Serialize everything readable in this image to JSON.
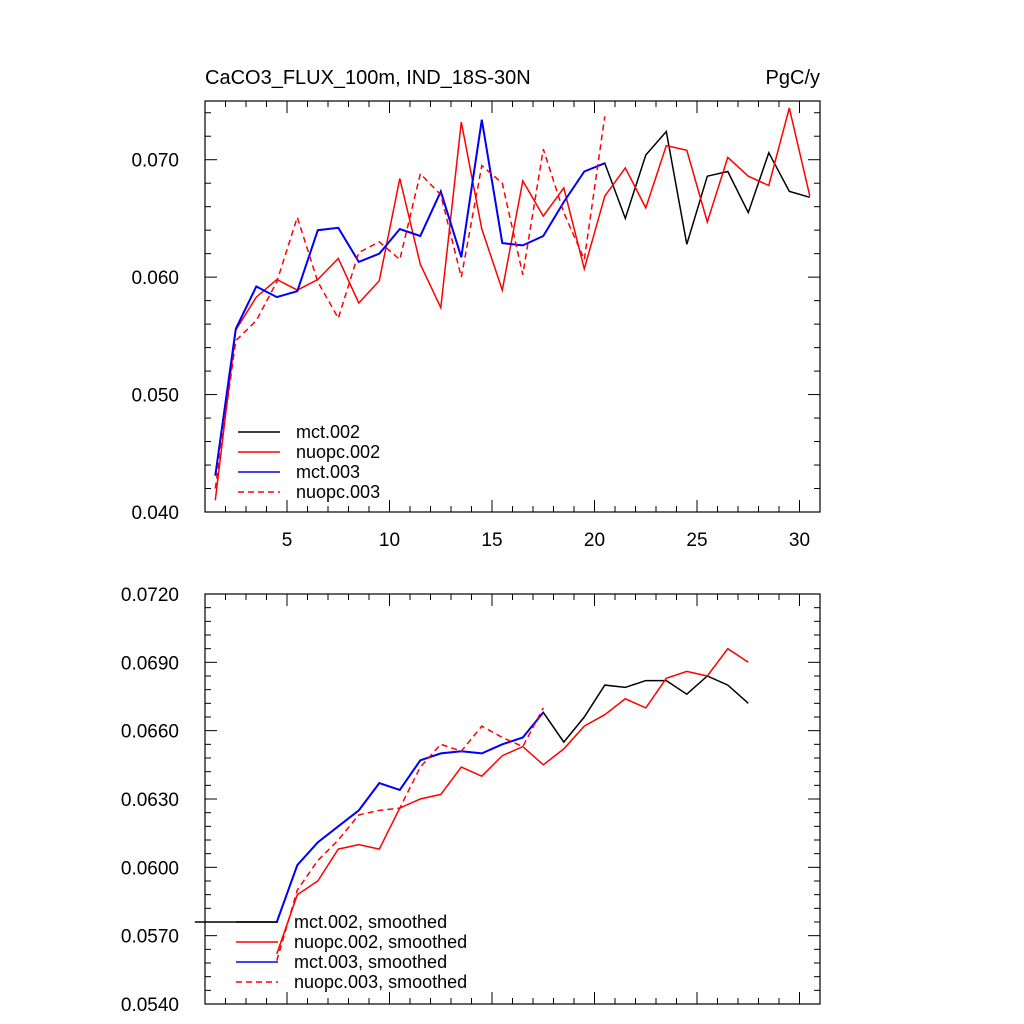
{
  "chart_data": [
    {
      "type": "line",
      "title": "CaCO3_FLUX_100m, IND_18S-30N",
      "units": "PgC/y",
      "xlim": [
        1,
        31
      ],
      "ylim": [
        0.04,
        0.075
      ],
      "xticks": [
        5,
        10,
        15,
        20,
        25,
        30
      ],
      "xtick_labels": [
        "5",
        "10",
        "15",
        "20",
        "25",
        "30"
      ],
      "yticks": [
        0.04,
        0.05,
        0.06,
        0.07
      ],
      "ytick_labels": [
        "0.040",
        "0.050",
        "0.060",
        "0.070"
      ],
      "legend_position": "bottom-left",
      "series": [
        {
          "name": "mct.002",
          "color": "#000000",
          "dash": "solid",
          "x": [
            1.5,
            2.5,
            3.5,
            4.5,
            5.5,
            6.5,
            7.5,
            8.5,
            9.5,
            10.5,
            11.5,
            12.5,
            13.5,
            14.5,
            15.5,
            16.5,
            17.5,
            18.5,
            19.5,
            20.5,
            21.5,
            22.5,
            23.5,
            24.5,
            25.5,
            26.5,
            27.5,
            28.5,
            29.5,
            30.5
          ],
          "y": [
            0.0431,
            0.0556,
            0.0592,
            0.0583,
            0.0588,
            0.064,
            0.0642,
            0.0613,
            0.062,
            0.0641,
            0.0635,
            0.0673,
            0.0617,
            0.0734,
            0.0629,
            0.0627,
            0.0635,
            0.0664,
            0.069,
            0.0697,
            0.065,
            0.0704,
            0.0724,
            0.0628,
            0.0686,
            0.069,
            0.0655,
            0.0706,
            0.0673,
            0.0668
          ]
        },
        {
          "name": "nuopc.002",
          "color": "#ff0000",
          "dash": "solid",
          "x": [
            1.5,
            2.5,
            3.5,
            4.5,
            5.5,
            6.5,
            7.5,
            8.5,
            9.5,
            10.5,
            11.5,
            12.5,
            13.5,
            14.5,
            15.5,
            16.5,
            17.5,
            18.5,
            19.5,
            20.5,
            21.5,
            22.5,
            23.5,
            24.5,
            25.5,
            26.5,
            27.5,
            28.5,
            29.5,
            30.5
          ],
          "y": [
            0.041,
            0.0555,
            0.0583,
            0.0598,
            0.0589,
            0.0598,
            0.0616,
            0.0578,
            0.0597,
            0.0684,
            0.0611,
            0.0574,
            0.0732,
            0.0641,
            0.0589,
            0.0682,
            0.0652,
            0.0676,
            0.0607,
            0.0669,
            0.0693,
            0.0659,
            0.0712,
            0.0708,
            0.0647,
            0.0702,
            0.0686,
            0.0678,
            0.0744,
            0.0669
          ]
        },
        {
          "name": "mct.003",
          "color": "#0000ff",
          "dash": "solid",
          "x": [
            1.5,
            2.5,
            3.5,
            4.5,
            5.5,
            6.5,
            7.5,
            8.5,
            9.5,
            10.5,
            11.5,
            12.5,
            13.5,
            14.5,
            15.5,
            16.5,
            17.5,
            18.5,
            19.5,
            20.5
          ],
          "y": [
            0.0431,
            0.0556,
            0.0592,
            0.0583,
            0.0588,
            0.064,
            0.0642,
            0.0613,
            0.062,
            0.0641,
            0.0635,
            0.0673,
            0.0617,
            0.0734,
            0.0629,
            0.0627,
            0.0635,
            0.0664,
            0.069,
            0.0697
          ]
        },
        {
          "name": "nuopc.003",
          "color": "#ff0000",
          "dash": "dashed",
          "x": [
            1.5,
            2.5,
            3.5,
            4.5,
            5.5,
            6.5,
            7.5,
            8.5,
            9.5,
            10.5,
            11.5,
            12.5,
            13.5,
            14.5,
            15.5,
            16.5,
            17.5,
            18.5,
            19.5,
            20.5
          ],
          "y": [
            0.042,
            0.0546,
            0.0563,
            0.0596,
            0.0651,
            0.0596,
            0.0565,
            0.0621,
            0.063,
            0.0615,
            0.0688,
            0.067,
            0.06,
            0.0695,
            0.068,
            0.0602,
            0.0709,
            0.0655,
            0.0615,
            0.0737
          ]
        }
      ]
    },
    {
      "type": "line",
      "title": "",
      "xlim": [
        1,
        31
      ],
      "ylim": [
        0.054,
        0.072
      ],
      "xticks": [
        5,
        10,
        15,
        20,
        25,
        30
      ],
      "yticks": [
        0.054,
        0.057,
        0.06,
        0.063,
        0.066,
        0.069,
        0.072
      ],
      "ytick_labels": [
        "0.0540",
        "0.0570",
        "0.0600",
        "0.0630",
        "0.0660",
        "0.0690",
        "0.0720"
      ],
      "legend_position": "bottom-left",
      "series": [
        {
          "name": "mct.002, smoothed",
          "color": "#000000",
          "dash": "solid",
          "x": [
            0.5,
            1.5,
            2.5,
            3.5,
            4.5,
            5.5,
            6.5,
            7.5,
            8.5,
            9.5,
            10.5,
            11.5,
            12.5,
            13.5,
            14.5,
            15.5,
            16.5,
            17.5,
            18.5,
            19.5,
            20.5,
            21.5,
            22.5,
            23.5,
            24.5,
            25.5,
            26.5,
            27.5
          ],
          "y": [
            0.0576,
            0.0576,
            0.0576,
            0.0576,
            0.0576,
            0.0601,
            0.0611,
            0.0618,
            0.0625,
            0.0637,
            0.0634,
            0.0647,
            0.065,
            0.0651,
            0.065,
            0.0654,
            0.0657,
            0.0668,
            0.0655,
            0.0666,
            0.068,
            0.0679,
            0.0682,
            0.0682,
            0.0676,
            0.0684,
            0.068,
            0.0672
          ]
        },
        {
          "name": "nuopc.002, smoothed",
          "color": "#ff0000",
          "dash": "solid",
          "x": [
            4.5,
            5.5,
            6.5,
            7.5,
            8.5,
            9.5,
            10.5,
            11.5,
            12.5,
            13.5,
            14.5,
            15.5,
            16.5,
            17.5,
            18.5,
            19.5,
            20.5,
            21.5,
            22.5,
            23.5,
            24.5,
            25.5,
            26.5,
            27.5
          ],
          "y": [
            0.0562,
            0.0588,
            0.0594,
            0.0608,
            0.061,
            0.0608,
            0.0626,
            0.063,
            0.0632,
            0.0644,
            0.064,
            0.0649,
            0.0653,
            0.0645,
            0.0652,
            0.0662,
            0.0667,
            0.0674,
            0.067,
            0.0683,
            0.0686,
            0.0684,
            0.0696,
            0.069
          ]
        },
        {
          "name": "mct.003, smoothed",
          "color": "#0000ff",
          "dash": "solid",
          "x": [
            4.5,
            5.5,
            6.5,
            7.5,
            8.5,
            9.5,
            10.5,
            11.5,
            12.5,
            13.5,
            14.5,
            15.5,
            16.5,
            17.5
          ],
          "y": [
            0.0576,
            0.0601,
            0.0611,
            0.0618,
            0.0625,
            0.0637,
            0.0634,
            0.0647,
            0.065,
            0.0651,
            0.065,
            0.0654,
            0.0657,
            0.0668
          ]
        },
        {
          "name": "nuopc.003, smoothed",
          "color": "#ff0000",
          "dash": "dashed",
          "x": [
            4.5,
            5.5,
            6.5,
            7.5,
            8.5,
            9.5,
            10.5,
            11.5,
            12.5,
            13.5,
            14.5,
            15.5,
            16.5,
            17.5
          ],
          "y": [
            0.0559,
            0.059,
            0.0603,
            0.0612,
            0.0623,
            0.0625,
            0.0626,
            0.0644,
            0.0654,
            0.0651,
            0.0662,
            0.0657,
            0.0653,
            0.067
          ]
        }
      ]
    }
  ]
}
